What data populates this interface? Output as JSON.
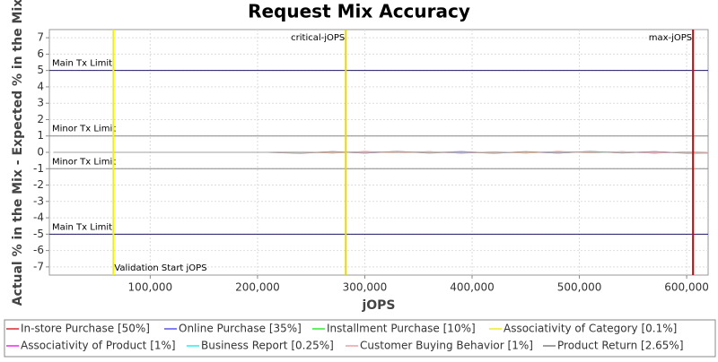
{
  "chart_data": {
    "type": "line",
    "title": "Request Mix Accuracy",
    "x_label": "jOPS",
    "y_label": "Actual % in the Mix - Expected % in the Mix",
    "xlim": [
      6000,
      620000
    ],
    "ylim": [
      -7.5,
      7.5
    ],
    "xticks": [
      {
        "value": 100000,
        "label": "100,000"
      },
      {
        "value": 200000,
        "label": "200,000"
      },
      {
        "value": 300000,
        "label": "300,000"
      },
      {
        "value": 400000,
        "label": "400,000"
      },
      {
        "value": 500000,
        "label": "500,000"
      },
      {
        "value": 600000,
        "label": "600,000"
      }
    ],
    "yticks": [
      -7,
      -6,
      -5,
      -4,
      -3,
      -2,
      -1,
      0,
      1,
      2,
      3,
      4,
      5,
      6,
      7
    ],
    "grid": true,
    "x": [
      10000,
      60000,
      110000,
      160000,
      210000,
      240000,
      270000,
      300000,
      330000,
      360000,
      390000,
      420000,
      450000,
      480000,
      510000,
      540000,
      570000,
      600000,
      620000
    ],
    "series": [
      {
        "name": "In-store Purchase [50%]",
        "color": "#e06060",
        "values": [
          0,
          0,
          0,
          0,
          0,
          0.03,
          -0.04,
          0.05,
          -0.03,
          0.04,
          -0.05,
          0.03,
          -0.04,
          0.05,
          -0.03,
          0.04,
          -0.05,
          0.03,
          0
        ]
      },
      {
        "name": "Online Purchase [35%]",
        "color": "#8080f0",
        "values": [
          0,
          0,
          0,
          0,
          0,
          -0.05,
          0.04,
          -0.04,
          0.05,
          -0.03,
          0.05,
          -0.05,
          0.03,
          -0.04,
          0.05,
          -0.03,
          0.04,
          -0.04,
          0
        ]
      },
      {
        "name": "Installment Purchase [10%]",
        "color": "#66ee66",
        "values": [
          0,
          0,
          0,
          0,
          0,
          0.02,
          -0.02,
          0.03,
          -0.02,
          0.02,
          -0.03,
          0.02,
          -0.02,
          0.03,
          -0.02,
          0.02,
          -0.03,
          0.02,
          0
        ]
      },
      {
        "name": "Associativity of Category [0.1%]",
        "color": "#f0f060",
        "values": [
          0,
          0,
          0,
          0,
          0,
          0,
          0.01,
          0,
          -0.01,
          0,
          0.01,
          0,
          -0.01,
          0,
          0.01,
          0,
          -0.01,
          0,
          0
        ]
      },
      {
        "name": "Associativity of Product [1%]",
        "color": "#f060f0",
        "values": [
          0,
          0,
          0,
          0,
          0,
          0.01,
          -0.01,
          0.02,
          -0.01,
          0.01,
          -0.02,
          0.01,
          -0.01,
          0.02,
          -0.01,
          0.01,
          -0.02,
          0.01,
          0
        ]
      },
      {
        "name": "Business Report [0.25%]",
        "color": "#60f0f0",
        "values": [
          0,
          0,
          0,
          0,
          0,
          -0.01,
          0.01,
          -0.01,
          0.01,
          -0.01,
          0.01,
          -0.01,
          0.01,
          -0.01,
          0.01,
          -0.01,
          0.01,
          -0.01,
          0
        ]
      },
      {
        "name": "Customer Buying Behavior [1%]",
        "color": "#f0b8b8",
        "values": [
          0,
          0,
          0,
          0,
          0,
          0.02,
          -0.01,
          0.01,
          -0.02,
          0.01,
          0.02,
          -0.01,
          0.01,
          -0.02,
          0.01,
          0.02,
          -0.01,
          0.01,
          0
        ]
      },
      {
        "name": "Product Return [2.65%]",
        "color": "#a0a0a0",
        "values": [
          0,
          0,
          0,
          0,
          0,
          -0.06,
          0.05,
          -0.05,
          0.06,
          -0.05,
          0.04,
          -0.06,
          0.05,
          -0.05,
          0.06,
          -0.04,
          0.05,
          -0.06,
          -0.05
        ]
      }
    ],
    "limit_lines": [
      {
        "value": 5,
        "label": "Main Tx Limit",
        "color": "#1a1a66"
      },
      {
        "value": 1,
        "label": "Minor Tx Limit",
        "color": "#888888"
      },
      {
        "value": -1,
        "label": "Minor Tx Limit",
        "color": "#888888"
      },
      {
        "value": -5,
        "label": "Main Tx Limit",
        "color": "#1a1a66"
      }
    ],
    "markers": [
      {
        "value": 65700,
        "label": "Validation Start jOPS",
        "color": "#f0f000",
        "label_position": "bottom-right"
      },
      {
        "value": 282300,
        "label": "critical-jOPS",
        "color": "#e6d800",
        "label_position": "top-left"
      },
      {
        "value": 605900,
        "label": "max-jOPS",
        "color": "#e00000",
        "label_position": "top-left"
      }
    ]
  }
}
